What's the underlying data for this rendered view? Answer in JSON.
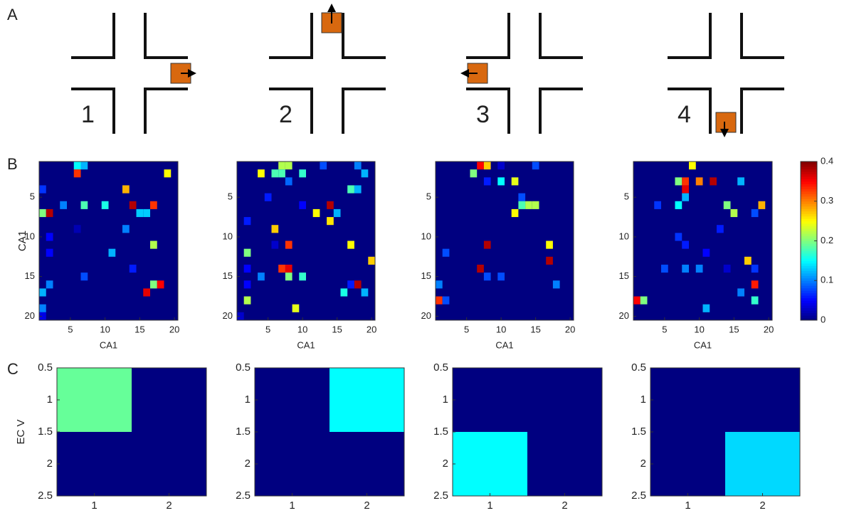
{
  "panel_labels": [
    "A",
    "B",
    "C"
  ],
  "intersections": {
    "labels": [
      "1",
      "2",
      "3",
      "4"
    ]
  },
  "colorbar": {
    "clim": [
      0,
      0.4
    ],
    "ticks": [
      0,
      0.1,
      0.2,
      0.3,
      0.4
    ]
  },
  "chart_data": [
    {
      "type": "heatmap",
      "xlabel": "CA1",
      "ylabel": "CA1",
      "xlim": [
        0.5,
        20.5
      ],
      "ylim": [
        20.5,
        0.5
      ],
      "xticks": [
        5,
        10,
        15,
        20
      ],
      "yticks": [
        5,
        10,
        15,
        20
      ],
      "x": [
        6,
        7,
        6,
        19,
        13,
        1,
        4,
        7,
        10,
        14,
        17,
        1,
        2,
        15,
        16,
        6,
        13,
        2,
        2,
        11,
        17,
        7,
        14,
        17,
        18,
        16,
        2,
        1,
        1,
        1
      ],
      "y": [
        1,
        1,
        2,
        2,
        4,
        4,
        6,
        6,
        6,
        6,
        6,
        7,
        7,
        7,
        7,
        9,
        9,
        10,
        12,
        12,
        11,
        15,
        14,
        16,
        16,
        17,
        16,
        17,
        19,
        20
      ],
      "values": [
        0.15,
        0.12,
        0.33,
        0.25,
        0.28,
        0.07,
        0.1,
        0.18,
        0.16,
        0.38,
        0.33,
        0.2,
        0.38,
        0.13,
        0.13,
        0.02,
        0.1,
        0.05,
        0.05,
        0.12,
        0.22,
        0.08,
        0.06,
        0.2,
        0.35,
        0.36,
        0.1,
        0.12,
        0.1,
        0.04
      ]
    },
    {
      "type": "heatmap",
      "xlabel": "CA1",
      "xlim": [
        0.5,
        20.5
      ],
      "ylim": [
        20.5,
        0.5
      ],
      "xticks": [
        5,
        10,
        15,
        20
      ],
      "yticks": [
        5,
        10,
        15,
        20
      ],
      "x": [
        7,
        8,
        13,
        18,
        4,
        6,
        7,
        10,
        19,
        8,
        5,
        17,
        18,
        10,
        14,
        15,
        12,
        14,
        6,
        2,
        6,
        8,
        2,
        17,
        20,
        7,
        8,
        2,
        4,
        8,
        10,
        2,
        17,
        18,
        16,
        19,
        2,
        9,
        1
      ],
      "y": [
        1,
        1,
        1,
        1,
        2,
        2,
        2,
        2,
        2,
        3,
        5,
        4,
        4,
        6,
        6,
        7,
        7,
        8,
        9,
        8,
        11,
        11,
        12,
        11,
        13,
        14,
        14,
        14,
        15,
        15,
        15,
        16,
        16,
        16,
        17,
        17,
        18,
        19,
        20
      ],
      "values": [
        0.22,
        0.22,
        0.08,
        0.1,
        0.25,
        0.18,
        0.18,
        0.17,
        0.12,
        0.09,
        0.06,
        0.18,
        0.12,
        0.05,
        0.38,
        0.12,
        0.25,
        0.26,
        0.27,
        0.06,
        0.03,
        0.33,
        0.2,
        0.25,
        0.27,
        0.33,
        0.36,
        0.05,
        0.1,
        0.2,
        0.17,
        0.05,
        0.06,
        0.38,
        0.16,
        0.12,
        0.22,
        0.24,
        0.03
      ]
    },
    {
      "type": "heatmap",
      "xlabel": "CA1",
      "xlim": [
        0.5,
        20.5
      ],
      "ylim": [
        20.5,
        0.5
      ],
      "xticks": [
        5,
        10,
        15,
        20
      ],
      "yticks": [
        5,
        10,
        15,
        20
      ],
      "x": [
        7,
        8,
        6,
        10,
        15,
        8,
        10,
        12,
        13,
        14,
        15,
        13,
        12,
        8,
        17,
        17,
        2,
        7,
        8,
        10,
        1,
        18,
        1,
        2
      ],
      "y": [
        1,
        1,
        2,
        1,
        1,
        3,
        3,
        3,
        5,
        6,
        6,
        6,
        7,
        11,
        11,
        13,
        12,
        14,
        15,
        15,
        16,
        16,
        18,
        18
      ],
      "values": [
        0.35,
        0.27,
        0.2,
        0.03,
        0.08,
        0.06,
        0.15,
        0.24,
        0.08,
        0.22,
        0.22,
        0.18,
        0.25,
        0.38,
        0.25,
        0.38,
        0.08,
        0.38,
        0.08,
        0.08,
        0.1,
        0.1,
        0.33,
        0.08
      ]
    },
    {
      "type": "heatmap",
      "xlabel": "CA1",
      "xlim": [
        0.5,
        20.5
      ],
      "ylim": [
        20.5,
        0.5
      ],
      "xticks": [
        5,
        10,
        15,
        20
      ],
      "yticks": [
        5,
        10,
        15,
        20
      ],
      "x": [
        9,
        7,
        8,
        10,
        12,
        16,
        8,
        4,
        7,
        8,
        14,
        15,
        18,
        19,
        13,
        7,
        8,
        11,
        17,
        5,
        8,
        10,
        14,
        18,
        16,
        18,
        18,
        1,
        2,
        11
      ],
      "y": [
        1,
        3,
        3,
        3,
        3,
        3,
        4,
        6,
        6,
        5,
        6,
        7,
        7,
        6,
        9,
        10,
        11,
        12,
        13,
        14,
        14,
        14,
        14,
        14,
        17,
        16,
        18,
        18,
        18,
        19
      ],
      "values": [
        0.25,
        0.2,
        0.33,
        0.3,
        0.38,
        0.12,
        0.36,
        0.07,
        0.15,
        0.12,
        0.2,
        0.22,
        0.08,
        0.28,
        0.06,
        0.07,
        0.06,
        0.05,
        0.27,
        0.08,
        0.1,
        0.1,
        0.03,
        0.07,
        0.1,
        0.34,
        0.17,
        0.35,
        0.2,
        0.12
      ]
    },
    {
      "type": "heatmap",
      "ylabel": "EC V",
      "xlim": [
        0.5,
        2.5
      ],
      "ylim": [
        2.5,
        0.5
      ],
      "xticks": [
        1,
        2
      ],
      "yticks": [
        0.5,
        1,
        1.5,
        2,
        2.5
      ],
      "x": [
        1
      ],
      "y": [
        1
      ],
      "values": [
        0.19
      ]
    },
    {
      "type": "heatmap",
      "xlim": [
        0.5,
        2.5
      ],
      "ylim": [
        2.5,
        0.5
      ],
      "xticks": [
        1,
        2
      ],
      "yticks": [
        0.5,
        1,
        1.5,
        2,
        2.5
      ],
      "x": [
        2
      ],
      "y": [
        1
      ],
      "values": [
        0.15
      ]
    },
    {
      "type": "heatmap",
      "xlim": [
        0.5,
        2.5
      ],
      "ylim": [
        2.5,
        0.5
      ],
      "xticks": [
        1,
        2
      ],
      "yticks": [
        0.5,
        1,
        1.5,
        2,
        2.5
      ],
      "x": [
        1
      ],
      "y": [
        2
      ],
      "values": [
        0.15
      ]
    },
    {
      "type": "heatmap",
      "xlim": [
        0.5,
        2.5
      ],
      "ylim": [
        2.5,
        0.5
      ],
      "xticks": [
        1,
        2
      ],
      "yticks": [
        0.5,
        1,
        1.5,
        2,
        2.5
      ],
      "x": [
        2
      ],
      "y": [
        2
      ],
      "values": [
        0.135
      ]
    }
  ]
}
